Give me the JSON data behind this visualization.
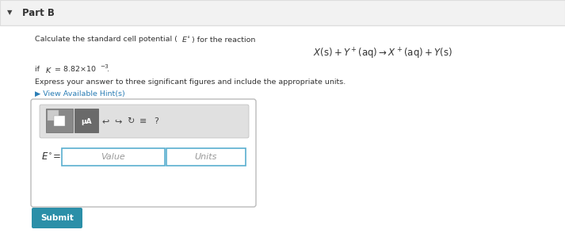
{
  "white_bg": "#ffffff",
  "header_bg": "#f2f2f2",
  "header_border": "#dddddd",
  "part_b_text": "Part B",
  "instruction_line": "Calculate the standard cell potential (",
  "instruction_end": ") for the reaction",
  "reaction_text": "X(s) + Y$^+$(aq) →X$^+$(aq) + Y(s)",
  "if_k_prefix": "if ",
  "if_k_body": "K",
  "if_k_suffix": " = 8.82×10",
  "K_exp": "−3",
  "sig_fig_text": "Express your answer to three significant figures and include the appropriate units.",
  "hint_text": "▶ View Available Hint(s)",
  "hint_color": "#2a7db5",
  "E_label": "E",
  "value_placeholder": "Value",
  "units_placeholder": "Units",
  "submit_text": "Submit",
  "submit_bg": "#2b8fa8",
  "submit_text_color": "#ffffff",
  "box_border_color": "#bbbbbb",
  "input_border_color": "#5aafd0",
  "toolbar_bg": "#e0e0e0",
  "triangle_color": "#444444",
  "text_color": "#333333",
  "gray_text": "#999999",
  "btn1_colors": [
    "#888888",
    "#666666",
    "#aaaaaa"
  ],
  "btn2_bg": "#666666",
  "icon_color": "#444444"
}
